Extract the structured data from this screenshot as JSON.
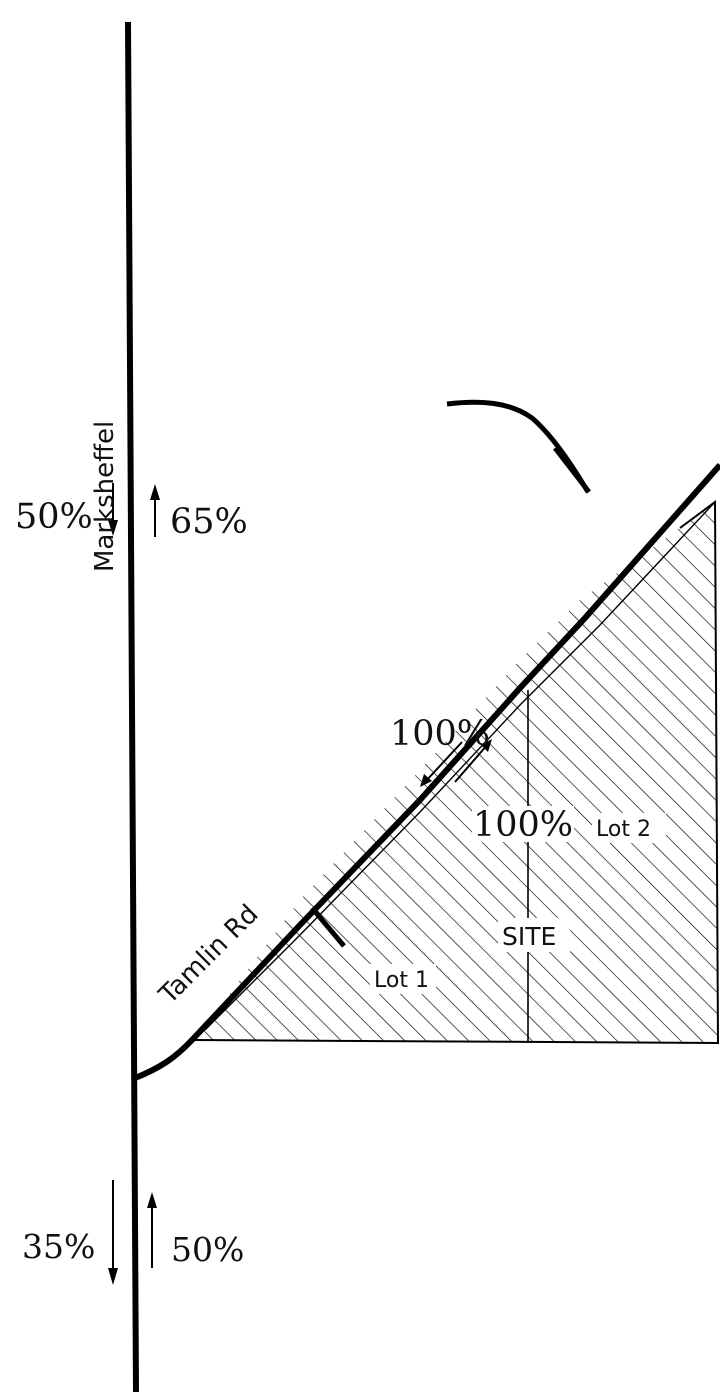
{
  "roads": {
    "main_road_name": "Marksheffel",
    "side_road_name": "Tamlin Rd"
  },
  "traffic_split": {
    "north_of_intersection": {
      "southbound": "50%",
      "northbound": "65%"
    },
    "south_of_intersection": {
      "southbound": "35%",
      "northbound": "50%"
    },
    "tamlin_rd": {
      "inbound": "100%",
      "outbound": "100%"
    }
  },
  "parcels": {
    "lot_1": "Lot 1",
    "lot_2": "Lot 2",
    "site": "SITE"
  },
  "colors": {
    "line": "#000000",
    "hatch": "#000000",
    "background": "#ffffff"
  }
}
